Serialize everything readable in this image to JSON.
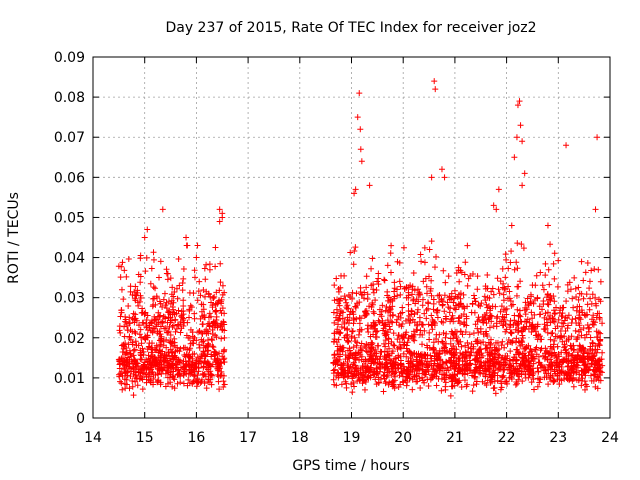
{
  "chart_data": {
    "type": "scatter",
    "title": "Day 237 of 2015, Rate Of TEC Index for receiver joz2",
    "xlabel": "GPS time / hours",
    "ylabel": "ROTI / TECUs",
    "xlim": [
      14,
      24
    ],
    "ylim": [
      0,
      0.09
    ],
    "xticks": [
      "14",
      "15",
      "16",
      "17",
      "18",
      "19",
      "20",
      "21",
      "22",
      "23",
      "24"
    ],
    "yticks": [
      "0",
      "0.01",
      "0.02",
      "0.03",
      "0.04",
      "0.05",
      "0.06",
      "0.07",
      "0.08",
      "0.09"
    ],
    "grid": true,
    "marker": "+",
    "color": "#ff0000",
    "series": [
      {
        "name": "ROTI",
        "segments": [
          {
            "x_start": 14.5,
            "x_end": 16.55
          },
          {
            "x_start": 18.65,
            "x_end": 23.85
          }
        ],
        "points": [
          [
            15.0,
            0.045
          ],
          [
            15.05,
            0.047
          ],
          [
            15.35,
            0.052
          ],
          [
            15.8,
            0.045
          ],
          [
            16.0,
            0.04
          ],
          [
            16.45,
            0.052
          ],
          [
            16.5,
            0.051
          ],
          [
            16.5,
            0.05
          ],
          [
            16.45,
            0.049
          ],
          [
            19.15,
            0.081
          ],
          [
            19.12,
            0.075
          ],
          [
            19.17,
            0.072
          ],
          [
            19.18,
            0.067
          ],
          [
            19.2,
            0.064
          ],
          [
            19.08,
            0.057
          ],
          [
            19.05,
            0.056
          ],
          [
            19.35,
            0.058
          ],
          [
            20.6,
            0.084
          ],
          [
            20.62,
            0.082
          ],
          [
            20.55,
            0.06
          ],
          [
            20.75,
            0.062
          ],
          [
            20.8,
            0.06
          ],
          [
            22.25,
            0.079
          ],
          [
            22.22,
            0.078
          ],
          [
            22.27,
            0.073
          ],
          [
            22.2,
            0.07
          ],
          [
            22.3,
            0.069
          ],
          [
            22.15,
            0.065
          ],
          [
            22.35,
            0.061
          ],
          [
            22.3,
            0.058
          ],
          [
            21.85,
            0.057
          ],
          [
            21.75,
            0.053
          ],
          [
            21.8,
            0.052
          ],
          [
            22.1,
            0.048
          ],
          [
            23.15,
            0.068
          ],
          [
            23.75,
            0.07
          ],
          [
            23.72,
            0.052
          ],
          [
            22.8,
            0.048
          ],
          [
            23.45,
            0.039
          ]
        ]
      }
    ]
  }
}
